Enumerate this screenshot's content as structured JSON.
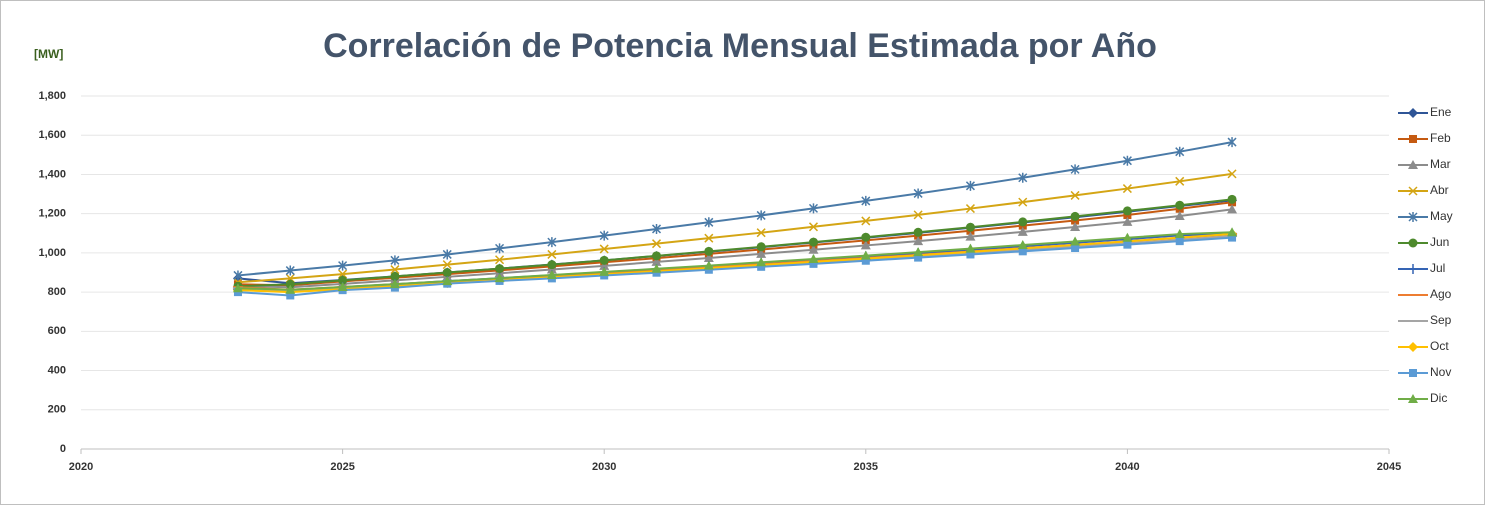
{
  "chart_data": {
    "type": "line",
    "title": "Correlación de Potencia Mensual Estimada por Año",
    "y_label": "[MW]",
    "x": [
      2023,
      2024,
      2025,
      2026,
      2027,
      2028,
      2029,
      2030,
      2031,
      2032,
      2033,
      2034,
      2035,
      2036,
      2037,
      2038,
      2039,
      2040,
      2041,
      2042
    ],
    "xlim": [
      2020,
      2045
    ],
    "xticks": [
      2020,
      2025,
      2030,
      2035,
      2040,
      2045
    ],
    "ylim": [
      0,
      1800
    ],
    "yticks": [
      0,
      200,
      400,
      600,
      800,
      {
        "value": 1000,
        "label": "1,000"
      },
      {
        "value": 1200,
        "label": "1,200"
      },
      {
        "value": 1400,
        "label": "1,400"
      },
      {
        "value": 1600,
        "label": "1,600"
      },
      {
        "value": 1800,
        "label": "1,800"
      }
    ],
    "grid": true,
    "legend": "right",
    "series": [
      {
        "name": "Ene",
        "color": "#2f5597",
        "marker": "diamond",
        "values": [
          870,
          845,
          862,
          880,
          900,
          920,
          941,
          962,
          984,
          1006,
          1029,
          1053,
          1077,
          1102,
          1128,
          1155,
          1182,
          1210,
          1239,
          1268
        ]
      },
      {
        "name": "Feb",
        "color": "#c55a11",
        "marker": "square",
        "values": [
          840,
          835,
          855,
          873,
          892,
          911,
          931,
          952,
          973,
          995,
          1017,
          1040,
          1064,
          1088,
          1113,
          1139,
          1165,
          1193,
          1225,
          1258
        ]
      },
      {
        "name": "Mar",
        "color": "#8c8c8c",
        "marker": "triangle",
        "values": [
          830,
          825,
          842,
          860,
          878,
          896,
          915,
          934,
          954,
          974,
          995,
          1016,
          1038,
          1060,
          1083,
          1107,
          1132,
          1158,
          1188,
          1222
        ]
      },
      {
        "name": "Abr",
        "color": "#d4a514",
        "marker": "x",
        "values": [
          850,
          870,
          892,
          915,
          940,
          965,
          992,
          1020,
          1047,
          1075,
          1103,
          1133,
          1163,
          1194,
          1226,
          1259,
          1293,
          1328,
          1365,
          1403
        ]
      },
      {
        "name": "May",
        "color": "#4a7aa7",
        "marker": "star",
        "values": [
          885,
          910,
          935,
          962,
          992,
          1023,
          1055,
          1088,
          1122,
          1156,
          1191,
          1227,
          1265,
          1303,
          1342,
          1383,
          1426,
          1470,
          1516,
          1565
        ]
      },
      {
        "name": "Jun",
        "color": "#4e8a2d",
        "marker": "circle",
        "values": [
          830,
          840,
          860,
          880,
          900,
          920,
          940,
          962,
          985,
          1008,
          1031,
          1055,
          1080,
          1105,
          1131,
          1158,
          1186,
          1214,
          1243,
          1273
        ]
      },
      {
        "name": "Jul",
        "color": "#3564b4",
        "marker": "plus",
        "values": [
          815,
          805,
          825,
          840,
          856,
          871,
          886,
          901,
          917,
          933,
          949,
          965,
          982,
          999,
          1016,
          1034,
          1052,
          1070,
          1089,
          1098
        ]
      },
      {
        "name": "Ago",
        "color": "#ed7d31",
        "marker": "dash",
        "values": [
          825,
          812,
          826,
          840,
          854,
          868,
          882,
          897,
          912,
          927,
          942,
          958,
          974,
          990,
          1007,
          1024,
          1041,
          1059,
          1077,
          1095
        ]
      },
      {
        "name": "Sep",
        "color": "#a5a5a5",
        "marker": "dash",
        "values": [
          820,
          808,
          818,
          831,
          845,
          859,
          873,
          887,
          902,
          917,
          932,
          948,
          964,
          980,
          997,
          1014,
          1031,
          1049,
          1067,
          1086
        ]
      },
      {
        "name": "Oct",
        "color": "#ffc000",
        "marker": "diamond",
        "values": [
          810,
          800,
          815,
          830,
          846,
          861,
          876,
          891,
          906,
          922,
          938,
          954,
          971,
          988,
          1005,
          1023,
          1041,
          1059,
          1078,
          1097
        ]
      },
      {
        "name": "Nov",
        "color": "#5b9bd5",
        "marker": "square",
        "values": [
          800,
          783,
          810,
          823,
          843,
          857,
          870,
          885,
          899,
          914,
          929,
          944,
          960,
          976,
          992,
          1008,
          1025,
          1042,
          1060,
          1078
        ]
      },
      {
        "name": "Dic",
        "color": "#70ad47",
        "marker": "triangle",
        "values": [
          820,
          812,
          826,
          841,
          856,
          871,
          887,
          903,
          919,
          935,
          952,
          969,
          986,
          1004,
          1022,
          1040,
          1058,
          1077,
          1096,
          1105
        ]
      }
    ]
  }
}
